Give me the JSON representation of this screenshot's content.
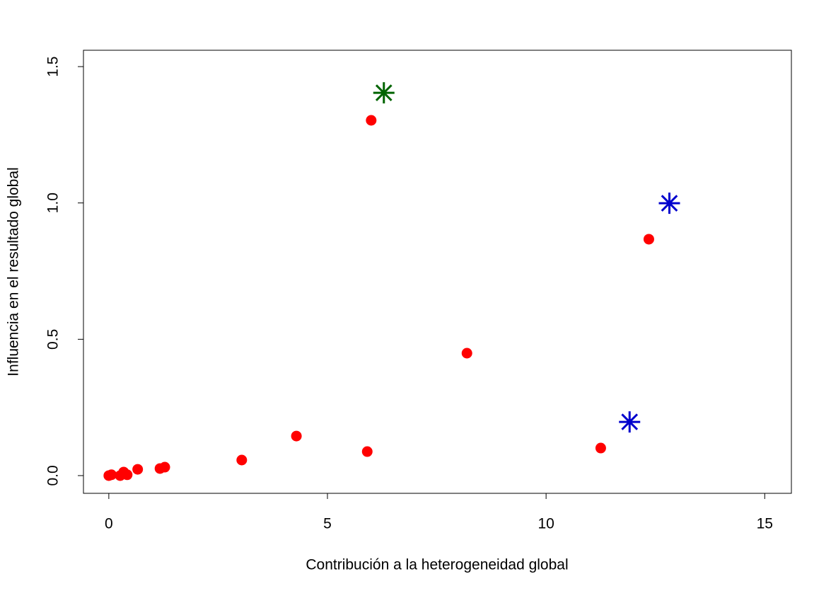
{
  "chart_data": {
    "type": "scatter",
    "x_label": "Contribución a la heterogeneidad global",
    "y_label": "Influencia en el resultado global",
    "xlim": [
      -0.58,
      15.61
    ],
    "ylim": [
      -0.065,
      1.56
    ],
    "xticks": [
      0,
      5,
      10,
      15
    ],
    "yticks": [
      {
        "value": 0,
        "label": "0.0"
      },
      0.5,
      {
        "value": 1,
        "label": "1.0"
      },
      1.5
    ],
    "grid": false,
    "series": [
      {
        "color": "#ff0000",
        "marker": "circle",
        "x": [
          0,
          0.06,
          0.26,
          0.34,
          0.42,
          0.66,
          1.17,
          1.28,
          3.04,
          4.29,
          5.91,
          6.0,
          8.19,
          11.25,
          12.35
        ],
        "values": [
          0,
          0.003,
          0,
          0.013,
          0.003,
          0.023,
          0.026,
          0.031,
          0.057,
          0.145,
          0.088,
          1.303,
          0.449,
          0.101,
          0.867
        ]
      },
      {
        "color": "#006400",
        "marker": "star",
        "x": [
          6.29
        ],
        "values": [
          1.404
        ]
      },
      {
        "color": "#0000cd",
        "marker": "star",
        "x": [
          12.82,
          11.91
        ],
        "values": [
          0.999,
          0.197
        ]
      }
    ]
  }
}
